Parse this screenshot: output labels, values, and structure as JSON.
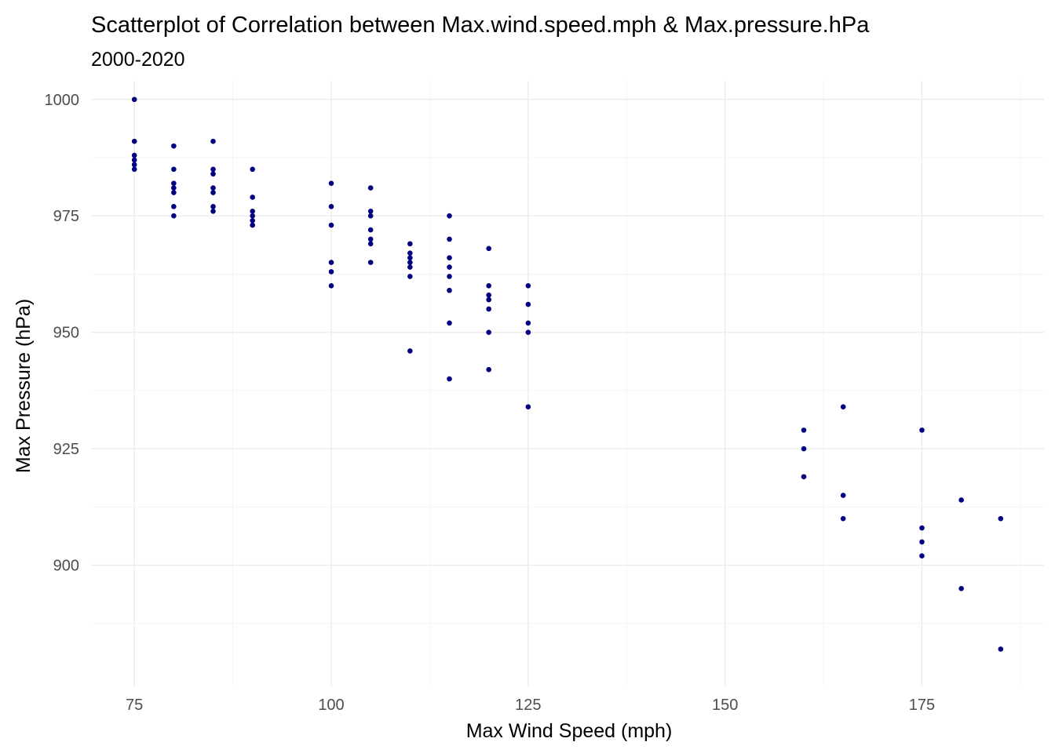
{
  "chart_data": {
    "type": "scatter",
    "title": "Scatterplot of Correlation between Max.wind.speed.mph & Max.pressure.hPa",
    "subtitle": "2000-2020",
    "xlabel": "Max Wind Speed (mph)",
    "ylabel": "Max Pressure (hPa)",
    "xlim": [
      69.5,
      190.5
    ],
    "ylim": [
      874,
      1004
    ],
    "x_ticks": [
      75,
      100,
      125,
      150,
      175
    ],
    "x_tick_labels": [
      "75",
      "100",
      "125",
      "150",
      "175"
    ],
    "x_minor_ticks": [
      87.5,
      112.5,
      137.5,
      162.5,
      187.5
    ],
    "y_ticks": [
      900,
      925,
      950,
      975,
      1000
    ],
    "y_tick_labels": [
      "900",
      "925",
      "950",
      "975",
      "1000"
    ],
    "y_minor_ticks": [
      887.5,
      912.5,
      937.5,
      962.5,
      987.5
    ],
    "grid": true,
    "legend": "none",
    "point_color": "#000080",
    "points": [
      {
        "x": 75,
        "y": 1000
      },
      {
        "x": 75,
        "y": 991
      },
      {
        "x": 75,
        "y": 988
      },
      {
        "x": 75,
        "y": 987
      },
      {
        "x": 75,
        "y": 986
      },
      {
        "x": 75,
        "y": 985
      },
      {
        "x": 80,
        "y": 990
      },
      {
        "x": 80,
        "y": 985
      },
      {
        "x": 80,
        "y": 982
      },
      {
        "x": 80,
        "y": 981
      },
      {
        "x": 80,
        "y": 980
      },
      {
        "x": 80,
        "y": 977
      },
      {
        "x": 80,
        "y": 975
      },
      {
        "x": 85,
        "y": 991
      },
      {
        "x": 85,
        "y": 985
      },
      {
        "x": 85,
        "y": 984
      },
      {
        "x": 85,
        "y": 981
      },
      {
        "x": 85,
        "y": 980
      },
      {
        "x": 85,
        "y": 977
      },
      {
        "x": 85,
        "y": 976
      },
      {
        "x": 90,
        "y": 985
      },
      {
        "x": 90,
        "y": 979
      },
      {
        "x": 90,
        "y": 976
      },
      {
        "x": 90,
        "y": 975
      },
      {
        "x": 90,
        "y": 974
      },
      {
        "x": 90,
        "y": 973
      },
      {
        "x": 100,
        "y": 982
      },
      {
        "x": 100,
        "y": 977
      },
      {
        "x": 100,
        "y": 973
      },
      {
        "x": 100,
        "y": 965
      },
      {
        "x": 100,
        "y": 963
      },
      {
        "x": 100,
        "y": 960
      },
      {
        "x": 105,
        "y": 981
      },
      {
        "x": 105,
        "y": 976
      },
      {
        "x": 105,
        "y": 975
      },
      {
        "x": 105,
        "y": 972
      },
      {
        "x": 105,
        "y": 970
      },
      {
        "x": 105,
        "y": 969
      },
      {
        "x": 105,
        "y": 965
      },
      {
        "x": 110,
        "y": 969
      },
      {
        "x": 110,
        "y": 967
      },
      {
        "x": 110,
        "y": 966
      },
      {
        "x": 110,
        "y": 965
      },
      {
        "x": 110,
        "y": 964
      },
      {
        "x": 110,
        "y": 962
      },
      {
        "x": 110,
        "y": 946
      },
      {
        "x": 115,
        "y": 975
      },
      {
        "x": 115,
        "y": 970
      },
      {
        "x": 115,
        "y": 966
      },
      {
        "x": 115,
        "y": 964
      },
      {
        "x": 115,
        "y": 962
      },
      {
        "x": 115,
        "y": 959
      },
      {
        "x": 115,
        "y": 952
      },
      {
        "x": 115,
        "y": 940
      },
      {
        "x": 120,
        "y": 968
      },
      {
        "x": 120,
        "y": 960
      },
      {
        "x": 120,
        "y": 958
      },
      {
        "x": 120,
        "y": 957
      },
      {
        "x": 120,
        "y": 955
      },
      {
        "x": 120,
        "y": 950
      },
      {
        "x": 120,
        "y": 942
      },
      {
        "x": 125,
        "y": 960
      },
      {
        "x": 125,
        "y": 956
      },
      {
        "x": 125,
        "y": 952
      },
      {
        "x": 125,
        "y": 950
      },
      {
        "x": 125,
        "y": 934
      },
      {
        "x": 160,
        "y": 929
      },
      {
        "x": 160,
        "y": 925
      },
      {
        "x": 160,
        "y": 919
      },
      {
        "x": 165,
        "y": 934
      },
      {
        "x": 165,
        "y": 915
      },
      {
        "x": 165,
        "y": 910
      },
      {
        "x": 175,
        "y": 929
      },
      {
        "x": 175,
        "y": 908
      },
      {
        "x": 175,
        "y": 905
      },
      {
        "x": 175,
        "y": 902
      },
      {
        "x": 180,
        "y": 914
      },
      {
        "x": 180,
        "y": 895
      },
      {
        "x": 185,
        "y": 910
      },
      {
        "x": 185,
        "y": 882
      }
    ]
  }
}
